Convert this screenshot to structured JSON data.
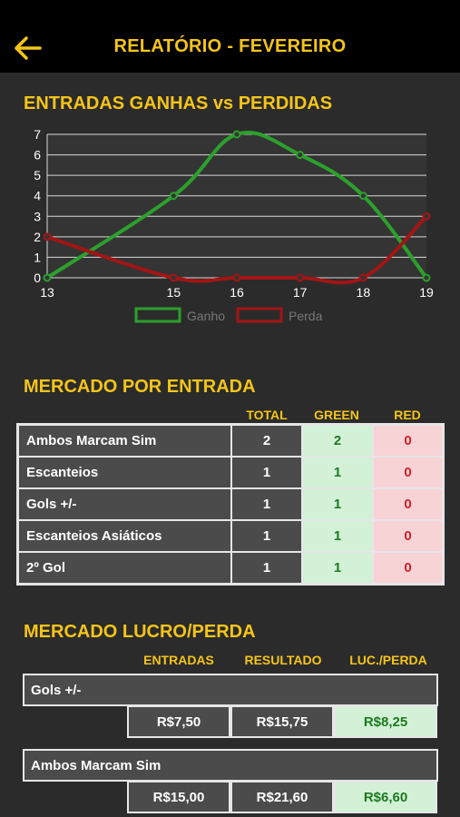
{
  "header": {
    "title": "RELATÓRIO - FEVEREIRO"
  },
  "chart_section": {
    "title": "ENTRADAS GANHAS vs PERDIDAS"
  },
  "chart_data": {
    "type": "line",
    "x": [
      13,
      15,
      16,
      17,
      18,
      19
    ],
    "series": [
      {
        "name": "Ganho",
        "values": [
          0,
          4,
          7,
          6,
          4,
          0
        ],
        "color": "#2ca02c"
      },
      {
        "name": "Perda",
        "values": [
          2,
          0,
          0,
          0,
          0,
          3
        ],
        "color": "#a31515"
      }
    ],
    "ylim": [
      0,
      7
    ],
    "yticks": [
      0,
      1,
      2,
      3,
      4,
      5,
      6,
      7
    ],
    "grid": true,
    "legend": "bottom"
  },
  "mercado_entrada": {
    "title": "MERCADO POR ENTRADA",
    "headers": [
      "TOTAL",
      "GREEN",
      "RED"
    ],
    "rows": [
      {
        "name": "Ambos Marcam Sim",
        "total": "2",
        "green": "2",
        "red": "0"
      },
      {
        "name": "Escanteios",
        "total": "1",
        "green": "1",
        "red": "0"
      },
      {
        "name": "Gols +/-",
        "total": "1",
        "green": "1",
        "red": "0"
      },
      {
        "name": "Escanteios Asiáticos",
        "total": "1",
        "green": "1",
        "red": "0"
      },
      {
        "name": "2º Gol",
        "total": "1",
        "green": "1",
        "red": "0"
      }
    ]
  },
  "mercado_lucro": {
    "title": "MERCADO LUCRO/PERDA",
    "headers": [
      "ENTRADAS",
      "RESULTADO",
      "LUC./PERDA"
    ],
    "rows": [
      {
        "name": "Gols +/-",
        "entradas": "R$7,50",
        "resultado": "R$15,75",
        "lucro": "R$8,25"
      },
      {
        "name": "Ambos Marcam Sim",
        "entradas": "R$15,00",
        "resultado": "R$21,60",
        "lucro": "R$6,60"
      }
    ]
  },
  "colors": {
    "accent": "#f5c518",
    "background": "#2b2b2b",
    "topbar": "#000000"
  }
}
